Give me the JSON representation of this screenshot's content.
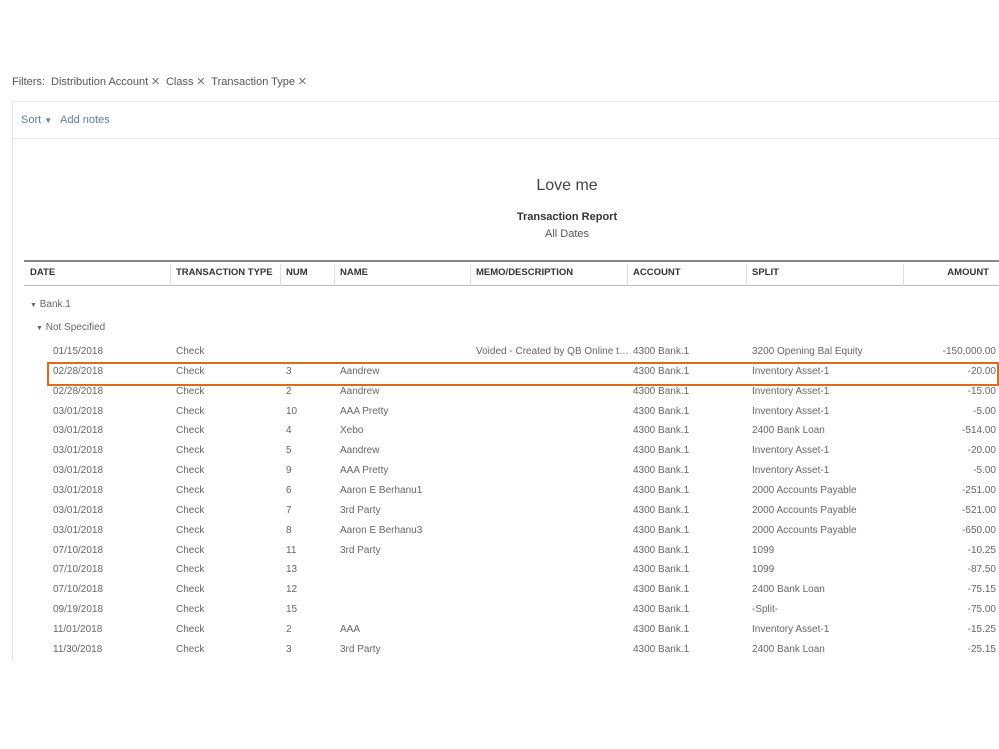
{
  "filters": {
    "label": "Filters:",
    "chips": [
      "Distribution Account",
      "Class",
      "Transaction Type"
    ]
  },
  "toolbar": {
    "sort": "Sort",
    "add_notes": "Add notes"
  },
  "report": {
    "company": "Love me",
    "title": "Transaction Report",
    "period": "All Dates"
  },
  "columns": [
    "DATE",
    "TRANSACTION TYPE",
    "NUM",
    "NAME",
    "MEMO/DESCRIPTION",
    "ACCOUNT",
    "SPLIT",
    "AMOUNT"
  ],
  "groups": {
    "account": "Bank.1",
    "class": "Not Specified"
  },
  "highlight_color": "#e06a1a",
  "rows": [
    [
      "01/15/2018",
      "Check",
      "",
      "",
      "Voided - Created by QB Online t…",
      "4300 Bank.1",
      "3200 Opening Bal Equity",
      "-150,000.00"
    ],
    [
      "02/28/2018",
      "Check",
      "3",
      "Aandrew",
      "",
      "4300 Bank.1",
      "Inventory Asset-1",
      "-20.00"
    ],
    [
      "02/28/2018",
      "Check",
      "2",
      "Aandrew",
      "",
      "4300 Bank.1",
      "Inventory Asset-1",
      "-15.00"
    ],
    [
      "03/01/2018",
      "Check",
      "10",
      "AAA Pretty",
      "",
      "4300 Bank.1",
      "Inventory Asset-1",
      "-5.00"
    ],
    [
      "03/01/2018",
      "Check",
      "4",
      "Xebo",
      "",
      "4300 Bank.1",
      "2400 Bank Loan",
      "-514.00"
    ],
    [
      "03/01/2018",
      "Check",
      "5",
      "Aandrew",
      "",
      "4300 Bank.1",
      "Inventory Asset-1",
      "-20.00"
    ],
    [
      "03/01/2018",
      "Check",
      "9",
      "AAA Pretty",
      "",
      "4300 Bank.1",
      "Inventory Asset-1",
      "-5.00"
    ],
    [
      "03/01/2018",
      "Check",
      "6",
      "Aaron E Berhanu1",
      "",
      "4300 Bank.1",
      "2000 Accounts Payable",
      "-251.00"
    ],
    [
      "03/01/2018",
      "Check",
      "7",
      "3rd Party",
      "",
      "4300 Bank.1",
      "2000 Accounts Payable",
      "-521.00"
    ],
    [
      "03/01/2018",
      "Check",
      "8",
      "Aaron E Berhanu3",
      "",
      "4300 Bank.1",
      "2000 Accounts Payable",
      "-650.00"
    ],
    [
      "07/10/2018",
      "Check",
      "11",
      "3rd Party",
      "",
      "4300 Bank.1",
      "1099",
      "-10.25"
    ],
    [
      "07/10/2018",
      "Check",
      "13",
      "",
      "",
      "4300 Bank.1",
      "1099",
      "-87.50"
    ],
    [
      "07/10/2018",
      "Check",
      "12",
      "",
      "",
      "4300 Bank.1",
      "2400 Bank Loan",
      "-75.15"
    ],
    [
      "09/19/2018",
      "Check",
      "15",
      "",
      "",
      "4300 Bank.1",
      "-Split-",
      "-75.00"
    ],
    [
      "11/01/2018",
      "Check",
      "2",
      "AAA",
      "",
      "4300 Bank.1",
      "Inventory Asset-1",
      "-15.25"
    ],
    [
      "11/30/2018",
      "Check",
      "3",
      "3rd Party",
      "",
      "4300 Bank.1",
      "2400 Bank Loan",
      "-25.15"
    ]
  ]
}
